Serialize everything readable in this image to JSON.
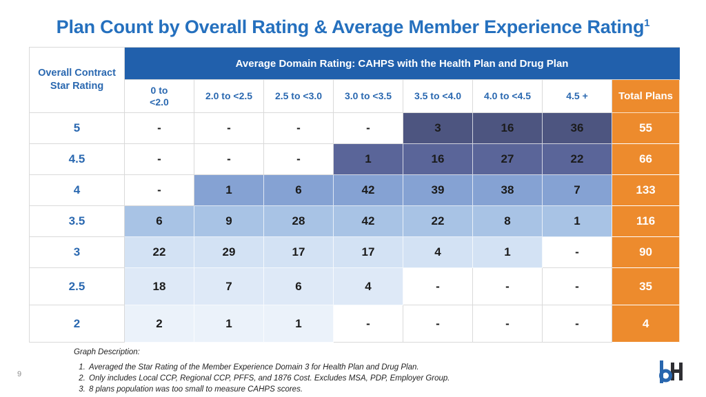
{
  "slide": {
    "title": "Plan Count by Overall Rating & Average Member Experience Rating",
    "title_superscript": "1",
    "page_number": "9"
  },
  "colors": {
    "title_blue": "#2570BE",
    "header_bar_blue": "#2160AC",
    "accent_orange": "#ED8B2D",
    "label_blue": "#2A68B0",
    "grid_gray": "#D9D9D9",
    "logo_blue": "#2866AE",
    "logo_dark": "#2E2E33"
  },
  "table": {
    "corner_header": "Overall Contract\nStar Rating",
    "domain_header": "Average Domain Rating: CAHPS with the Health Plan and Drug Plan",
    "column_headers_display": [
      "0 to\n<2.0",
      "2.0 to <2.5",
      "2.5 to <3.0",
      "3.0 to <3.5",
      "3.5 to <4.0",
      "4.0 to <4.5",
      "4.5 +"
    ],
    "total_header": "Total Plans"
  },
  "chart_data": {
    "type": "heatmap",
    "title": "Plan Count by Overall Rating & Average Member Experience Rating",
    "ylabel": "Overall Contract Star Rating",
    "xlabel": "Average Domain Rating: CAHPS with the Health Plan and Drug Plan",
    "rows": [
      "5",
      "4.5",
      "4",
      "3.5",
      "3",
      "2.5",
      "2"
    ],
    "columns": [
      "0 to <2.0",
      "2.0 to <2.5",
      "2.5 to <3.0",
      "3.0 to <3.5",
      "3.5 to <4.0",
      "4.0 to <4.5",
      "4.5 +"
    ],
    "values": [
      [
        null,
        null,
        null,
        null,
        3,
        16,
        36
      ],
      [
        null,
        null,
        null,
        1,
        16,
        27,
        22
      ],
      [
        null,
        1,
        6,
        42,
        39,
        38,
        7
      ],
      [
        6,
        9,
        28,
        42,
        22,
        8,
        1
      ],
      [
        22,
        29,
        17,
        17,
        4,
        1,
        null
      ],
      [
        18,
        7,
        6,
        4,
        null,
        null,
        null
      ],
      [
        2,
        1,
        1,
        null,
        null,
        null,
        null
      ]
    ],
    "totals": [
      55,
      66,
      133,
      116,
      90,
      35,
      4
    ],
    "totals_label": "Total Plans",
    "row_band_colors": [
      "#4D5580",
      "#5A6599",
      "#85A2D3",
      "#A8C3E5",
      "#D3E2F4",
      "#DEE9F7",
      "#EBF2FA"
    ],
    "null_display": "-",
    "legend_position": "none",
    "grid": true
  },
  "footnotes": {
    "heading": "Graph Description:",
    "items": [
      "Averaged the Star Rating of the Member Experience Domain 3 for Health Plan and Drug Plan.",
      "Only includes Local CCP, Regional CCP, PFFS, and 1876 Cost. Excludes MSA, PDP, Employer Group.",
      "8 plans population was too small to measure CAHPS scores."
    ]
  }
}
